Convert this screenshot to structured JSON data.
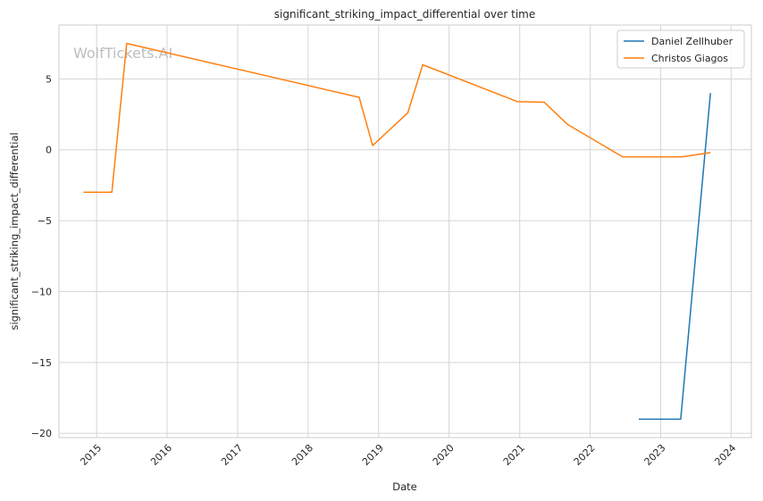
{
  "chart_data": {
    "type": "line",
    "title": "significant_striking_impact_differential over time",
    "xlabel": "Date",
    "ylabel": "significant_striking_impact_differential",
    "watermark": "WolfTickets.AI",
    "xlim": [
      "2014-06-20",
      "2024-04-15"
    ],
    "ylim": [
      -20.3,
      8.8
    ],
    "yticks": [
      5,
      0,
      -5,
      -10,
      -15,
      -20
    ],
    "ytick_labels": [
      "5",
      "0",
      "−5",
      "−10",
      "−15",
      "−20"
    ],
    "xticks": [
      "2015-01-01",
      "2016-01-01",
      "2017-01-01",
      "2018-01-01",
      "2019-01-01",
      "2020-01-01",
      "2021-01-01",
      "2022-01-01",
      "2023-01-01",
      "2024-01-01"
    ],
    "xtick_labels": [
      "2015",
      "2016",
      "2017",
      "2018",
      "2019",
      "2020",
      "2021",
      "2022",
      "2023",
      "2024"
    ],
    "grid": true,
    "legend_position": "top-right",
    "series": [
      {
        "name": "Daniel Zellhuber",
        "color": "#1f77b4",
        "points": [
          {
            "x": "2022-09-10",
            "y": -19
          },
          {
            "x": "2023-04-15",
            "y": -19
          },
          {
            "x": "2023-09-16",
            "y": 4
          }
        ]
      },
      {
        "name": "Christos Giagos",
        "color": "#ff7f0e",
        "points": [
          {
            "x": "2014-10-25",
            "y": -3
          },
          {
            "x": "2015-03-21",
            "y": -3
          },
          {
            "x": "2015-06-06",
            "y": 7.5
          },
          {
            "x": "2018-09-22",
            "y": 3.7
          },
          {
            "x": "2018-12-01",
            "y": 0.3
          },
          {
            "x": "2019-06-01",
            "y": 2.6
          },
          {
            "x": "2019-08-17",
            "y": 6.0
          },
          {
            "x": "2020-12-19",
            "y": 3.4
          },
          {
            "x": "2021-05-08",
            "y": 3.35
          },
          {
            "x": "2021-09-04",
            "y": 1.8
          },
          {
            "x": "2022-06-18",
            "y": -0.5
          },
          {
            "x": "2023-04-22",
            "y": -0.5
          },
          {
            "x": "2023-09-16",
            "y": -0.2
          }
        ]
      }
    ]
  }
}
